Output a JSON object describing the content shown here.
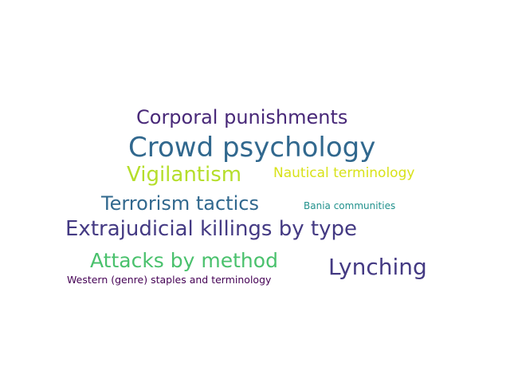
{
  "word_cloud": {
    "words": [
      {
        "text": "Corporal punishments",
        "color": "#482878"
      },
      {
        "text": "Crowd psychology",
        "color": "#31688e"
      },
      {
        "text": "Vigilantism",
        "color": "#b5de2b"
      },
      {
        "text": "Nautical terminology",
        "color": "#d8e219"
      },
      {
        "text": "Terrorism tactics",
        "color": "#31688e"
      },
      {
        "text": "Bania communities",
        "color": "#21918c"
      },
      {
        "text": "Extrajudicial killings by type",
        "color": "#443a83"
      },
      {
        "text": "Attacks by method",
        "color": "#4ac16d"
      },
      {
        "text": "Lynching",
        "color": "#443a83"
      },
      {
        "text": "Western (genre) staples and terminology",
        "color": "#440154"
      }
    ]
  }
}
